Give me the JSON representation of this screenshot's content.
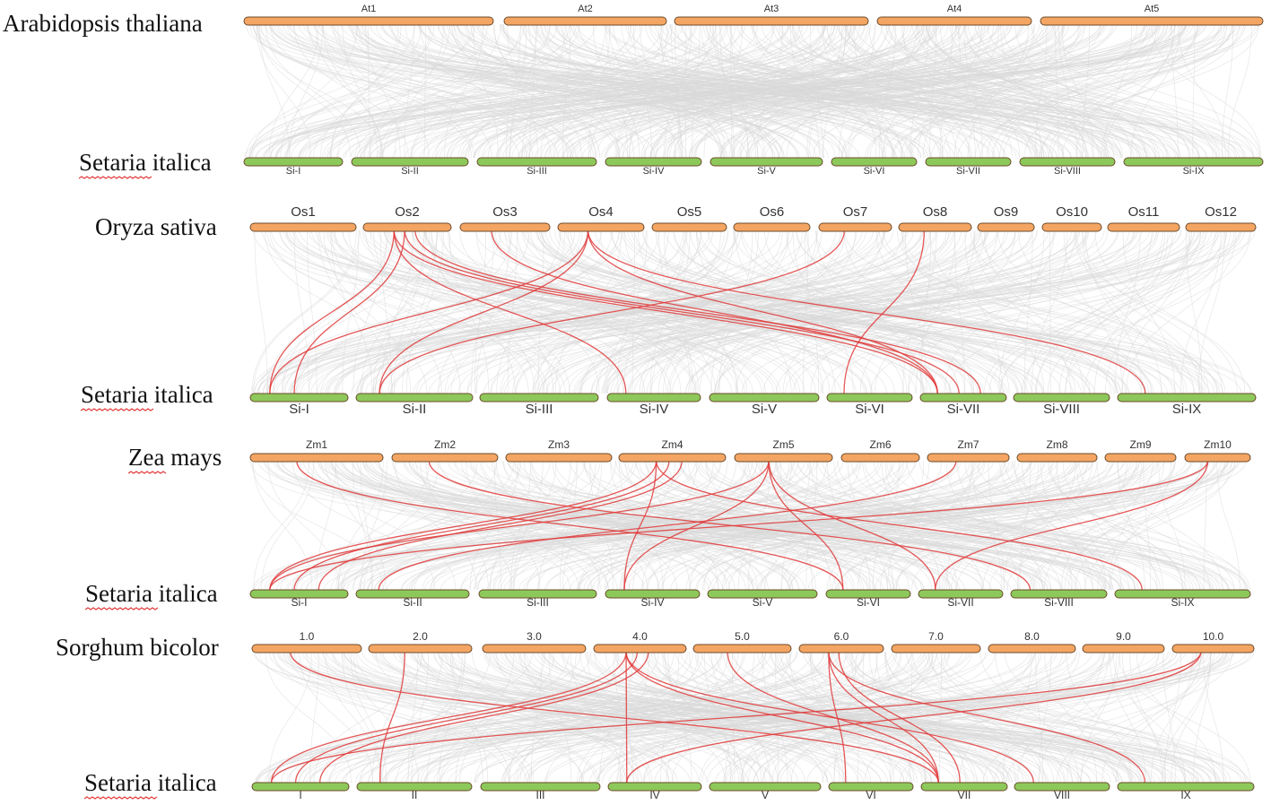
{
  "colors": {
    "top_chromosome": "#f4a563",
    "bottom_chromosome": "#8dc85a",
    "gray_link": "#d9d9d9",
    "red_link": "#e0393a"
  },
  "panels": [
    {
      "top_species": "Arabidopsis thaliana",
      "bottom_species": "Setaria italica",
      "top_chromosomes": [
        "At1",
        "At2",
        "At3",
        "At4",
        "At5"
      ],
      "bottom_chromosomes": [
        "Si-I",
        "Si-II",
        "Si-III",
        "Si-IV",
        "Si-V",
        "Si-VI",
        "Si-VII",
        "Si-VIII",
        "Si-IX"
      ],
      "red_links": []
    },
    {
      "top_species": "Oryza sativa",
      "bottom_species": "Setaria italica",
      "top_chromosomes": [
        "Os1",
        "Os2",
        "Os3",
        "Os4",
        "Os5",
        "Os6",
        "Os7",
        "Os8",
        "Os9",
        "Os10",
        "Os11",
        "Os12"
      ],
      "bottom_chromosomes": [
        "Si-I",
        "Si-II",
        "Si-III",
        "Si-IV",
        "Si-V",
        "Si-VI",
        "Si-VII",
        "Si-VIII",
        "Si-IX"
      ],
      "red_links": [
        [
          "Os2",
          "Si-I"
        ],
        [
          "Os2",
          "Si-I"
        ],
        [
          "Os2",
          "Si-IV"
        ],
        [
          "Os2",
          "Si-VII"
        ],
        [
          "Os2",
          "Si-VII"
        ],
        [
          "Os2",
          "Si-VII"
        ],
        [
          "Os4",
          "Si-I"
        ],
        [
          "Os4",
          "Si-II"
        ],
        [
          "Os4",
          "Si-VII"
        ],
        [
          "Os3",
          "Si-VII"
        ],
        [
          "Os4",
          "Si-IX"
        ],
        [
          "Os7",
          "Si-II"
        ],
        [
          "Os8",
          "Si-VI"
        ]
      ]
    },
    {
      "top_species": "Zea mays",
      "bottom_species": "Setaria italica",
      "top_chromosomes": [
        "Zm1",
        "Zm2",
        "Zm3",
        "Zm4",
        "Zm5",
        "Zm6",
        "Zm7",
        "Zm8",
        "Zm9",
        "Zm10"
      ],
      "bottom_chromosomes": [
        "Si-I",
        "Si-II",
        "Si-III",
        "Si-IV",
        "Si-V",
        "Si-VI",
        "Si-VII",
        "Si-VIII",
        "Si-IX"
      ],
      "red_links": [
        [
          "Zm1",
          "Si-VI"
        ],
        [
          "Zm2",
          "Si-VIII"
        ],
        [
          "Zm4",
          "Si-I"
        ],
        [
          "Zm4",
          "Si-I"
        ],
        [
          "Zm4",
          "Si-I"
        ],
        [
          "Zm4",
          "Si-IV"
        ],
        [
          "Zm4",
          "Si-IX"
        ],
        [
          "Zm5",
          "Si-I"
        ],
        [
          "Zm5",
          "Si-IV"
        ],
        [
          "Zm5",
          "Si-VI"
        ],
        [
          "Zm5",
          "Si-VII"
        ],
        [
          "Zm7",
          "Si-II"
        ],
        [
          "Zm10",
          "Si-I"
        ],
        [
          "Zm10",
          "Si-VII"
        ]
      ]
    },
    {
      "top_species": "Sorghum bicolor",
      "bottom_species": "Setaria italica",
      "top_chromosomes": [
        "1.0",
        "2.0",
        "3.0",
        "4.0",
        "5.0",
        "6.0",
        "7.0",
        "8.0",
        "9.0",
        "10.0"
      ],
      "bottom_chromosomes": [
        "I",
        "II",
        "III",
        "IV",
        "V",
        "VI",
        "VII",
        "VIII",
        "IX"
      ],
      "red_links": [
        [
          "1.0",
          "VII"
        ],
        [
          "2.0",
          "II"
        ],
        [
          "4.0",
          "I"
        ],
        [
          "4.0",
          "I"
        ],
        [
          "4.0",
          "I"
        ],
        [
          "4.0",
          "IV"
        ],
        [
          "4.0",
          "VII"
        ],
        [
          "4.0",
          "VIII"
        ],
        [
          "5.0",
          "VII"
        ],
        [
          "6.0",
          "VI"
        ],
        [
          "6.0",
          "VII"
        ],
        [
          "6.0",
          "VII"
        ],
        [
          "6.0",
          "IX"
        ],
        [
          "10.0",
          "I"
        ],
        [
          "10.0",
          "IV"
        ]
      ]
    }
  ]
}
